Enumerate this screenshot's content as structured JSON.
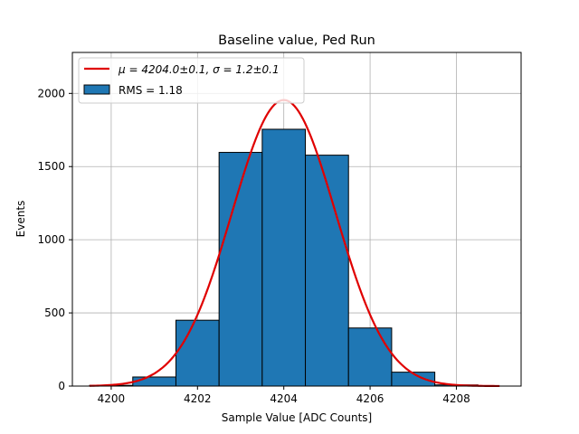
{
  "chart_data": {
    "type": "bar",
    "title": "Baseline value, Ped Run",
    "xlabel": "Sample Value [ADC Counts]",
    "ylabel": "Events",
    "xlim": [
      4199.1,
      4209.5
    ],
    "ylim": [
      0,
      2280
    ],
    "xticks": [
      4200,
      4202,
      4204,
      4206,
      4208
    ],
    "yticks": [
      0,
      500,
      1000,
      1500,
      2000
    ],
    "grid": true,
    "legend_position": "top-left",
    "bin_width": 1,
    "bins": [
      {
        "center": 4200,
        "value": 5
      },
      {
        "center": 4201,
        "value": 62
      },
      {
        "center": 4202,
        "value": 450
      },
      {
        "center": 4203,
        "value": 1597
      },
      {
        "center": 4204,
        "value": 1755
      },
      {
        "center": 4205,
        "value": 1578
      },
      {
        "center": 4206,
        "value": 397
      },
      {
        "center": 4207,
        "value": 95
      },
      {
        "center": 4208,
        "value": 8
      }
    ],
    "histogram_color": "#1f77b4",
    "fit": {
      "type": "gaussian",
      "mu": 4204.0,
      "sigma": 1.2,
      "amplitude": 1955,
      "x_range": [
        4199.5,
        4209.0
      ],
      "color": "#e00000"
    },
    "legend": {
      "fit_label": "μ = 4204.0±0.1, σ = 1.2±0.1",
      "hist_label": "RMS = 1.18"
    }
  }
}
